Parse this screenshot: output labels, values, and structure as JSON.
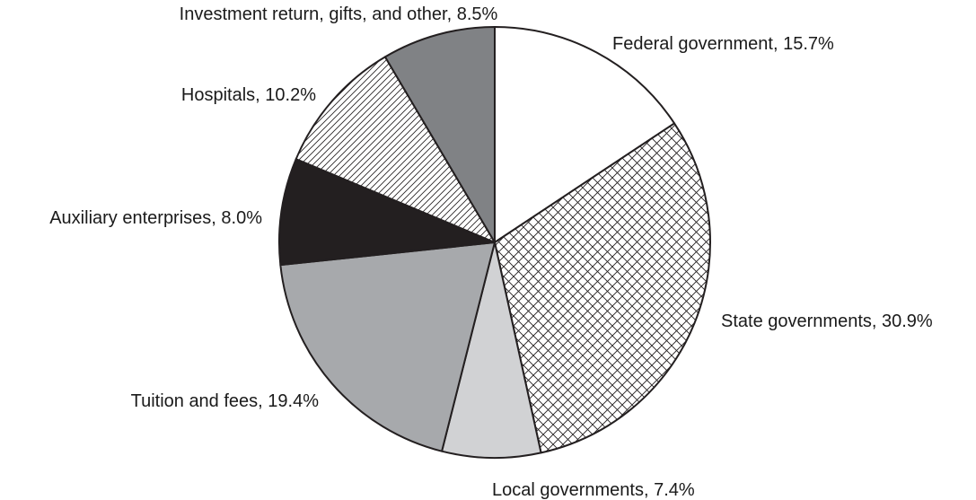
{
  "chart_data": {
    "type": "pie",
    "start_angle_deg": 0,
    "direction": "clockwise",
    "legend": "none",
    "slices": [
      {
        "label": "Federal government, 15.7%",
        "name": "Federal government",
        "value": 15.7,
        "fill": "#ffffff",
        "pattern": "none"
      },
      {
        "label": "State governments, 30.9%",
        "name": "State governments",
        "value": 30.9,
        "fill": "#ffffff",
        "pattern": "crosshatch"
      },
      {
        "label": "Local governments, 7.4%",
        "name": "Local governments",
        "value": 7.4,
        "fill": "#d1d2d4",
        "pattern": "none"
      },
      {
        "label": "Tuition and fees, 19.4%",
        "name": "Tuition and fees",
        "value": 19.4,
        "fill": "#a7a9ac",
        "pattern": "none"
      },
      {
        "label": "Auxiliary enterprises, 8.0%",
        "name": "Auxiliary enterprises",
        "value": 8.0,
        "fill": "#231f20",
        "pattern": "none"
      },
      {
        "label": "Hospitals, 10.2%",
        "name": "Hospitals",
        "value": 10.2,
        "fill": "#ffffff",
        "pattern": "diagonal-lines"
      },
      {
        "label": "Investment return, gifts, and other, 8.5%",
        "name": "Investment return, gifts, and other",
        "value": 8.5,
        "fill": "#808285",
        "pattern": "none"
      }
    ]
  },
  "colors": {
    "outline": "#231f20",
    "label_text": "#1a1a1a",
    "background": "#ffffff"
  }
}
